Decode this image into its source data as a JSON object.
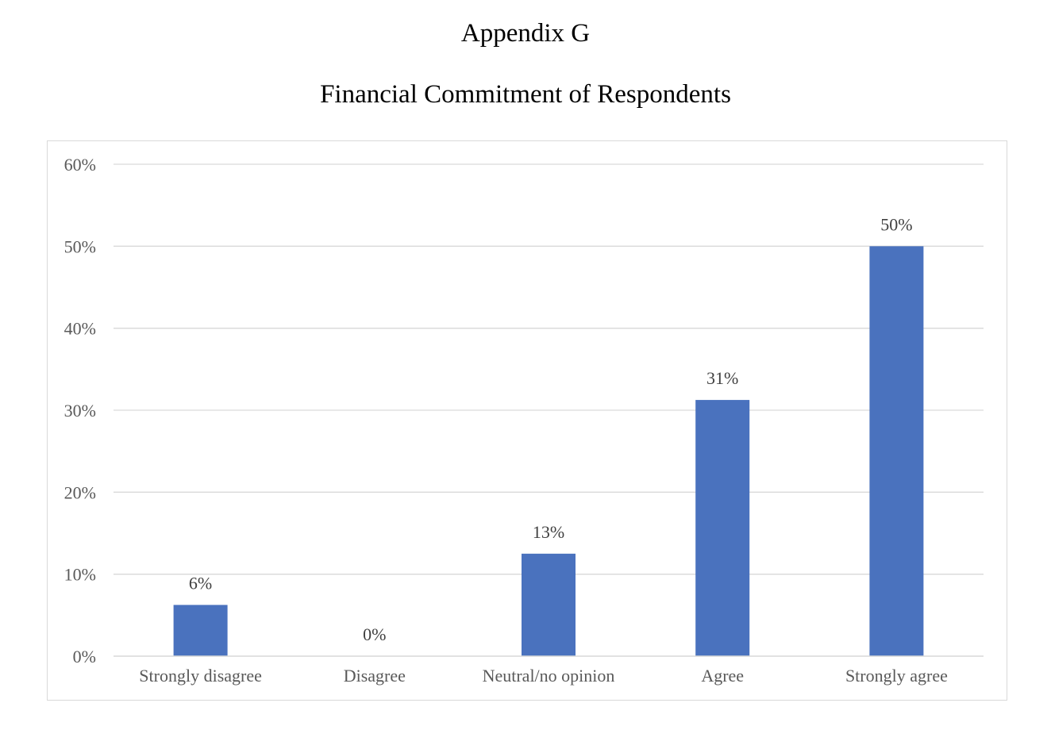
{
  "heading": "Appendix G",
  "chart_data": {
    "type": "bar",
    "title": "Financial Commitment of Respondents",
    "categories": [
      "Strongly disagree",
      "Disagree",
      "Neutral/no opinion",
      "Agree",
      "Strongly agree"
    ],
    "values": [
      6.25,
      0,
      12.5,
      31.25,
      50
    ],
    "data_labels": [
      "6%",
      "0%",
      "13%",
      "31%",
      "50%"
    ],
    "ylim": [
      0,
      60
    ],
    "yticks": [
      0,
      10,
      20,
      30,
      40,
      50,
      60
    ],
    "ytick_labels": [
      "0%",
      "10%",
      "20%",
      "30%",
      "40%",
      "50%",
      "60%"
    ],
    "xlabel": "",
    "ylabel": "",
    "grid": true,
    "legend": "none",
    "bar_color": "#4a72be",
    "grid_color": "#d9d9d9"
  }
}
